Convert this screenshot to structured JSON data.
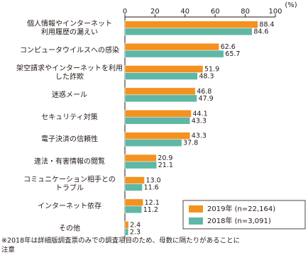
{
  "chart_data": {
    "type": "bar",
    "orientation": "horizontal",
    "x_axis_label": "(%)",
    "categories": [
      [
        "個人情報やインターネット",
        "利用履歴の漏えい"
      ],
      [
        "コンピュータウイルスへの感染"
      ],
      [
        "架空請求やインターネットを利用",
        "した詐欺"
      ],
      [
        "迷惑メール"
      ],
      [
        "セキュリティ対策"
      ],
      [
        "電子決済の信頼性"
      ],
      [
        "違法・有害情報の閲覧"
      ],
      [
        "コミュニケーション相手との",
        "トラブル"
      ],
      [
        "インターネット依存"
      ],
      [
        "その他"
      ]
    ],
    "series": [
      {
        "name": "2019年 (n=22,164)",
        "color": "#f39220",
        "values": [
          88.4,
          62.6,
          51.9,
          46.8,
          44.1,
          43.3,
          20.9,
          13.0,
          12.1,
          2.4
        ],
        "value_labels": [
          "88.4",
          "62.6",
          "51.9",
          "46.8",
          "44.1",
          "43.3",
          "20.9",
          "13.0",
          "12.1",
          "2.4"
        ]
      },
      {
        "name": "2018年 (n=3,091)",
        "color": "#5fb7a6",
        "values": [
          84.6,
          65.7,
          48.3,
          47.9,
          43.3,
          37.8,
          21.1,
          11.6,
          11.2,
          2.3
        ],
        "value_labels": [
          "84.6",
          "65.7",
          "48.3",
          "47.9",
          "43.3",
          "37.8",
          "21.1",
          "11.6",
          "11.2",
          "2.3"
        ]
      }
    ],
    "xlim": [
      0,
      100
    ],
    "xticks": [
      0,
      20,
      40,
      60,
      80,
      100
    ],
    "legend": "lower right",
    "note": [
      "※2018年は詳細版調査票のみでの調査項目のため、母数に隔たりがあることに",
      "注意"
    ]
  }
}
